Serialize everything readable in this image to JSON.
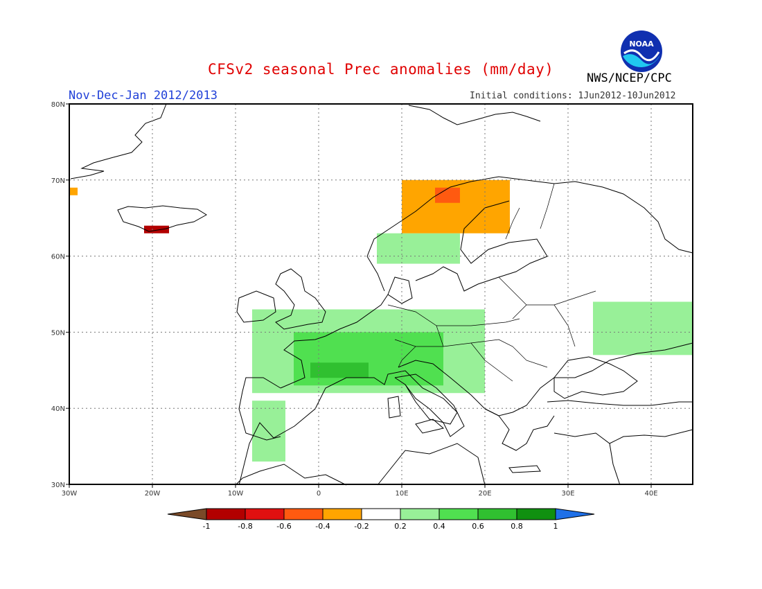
{
  "title": "CFSv2 seasonal Prec anomalies (mm/day)",
  "period": "Nov-Dec-Jan 2012/2013",
  "initial_conditions": "Initial conditions: 1Jun2012-10Jun2012",
  "agency": "NWS/NCEP/CPC",
  "logo_text": "NOAA",
  "map": {
    "lon_range": [
      -30,
      45
    ],
    "lat_range": [
      30,
      80
    ],
    "lat_ticks": [
      "30N",
      "40N",
      "50N",
      "60N",
      "70N",
      "80N"
    ],
    "lon_ticks": [
      "30W",
      "20W",
      "10W",
      "0",
      "10E",
      "20E",
      "30E",
      "40E"
    ],
    "grid": "dotted"
  },
  "colorbar": {
    "labels": [
      "-1",
      "-0.8",
      "-0.6",
      "-0.4",
      "-0.2",
      "0.2",
      "0.4",
      "0.6",
      "0.8",
      "1"
    ],
    "colors": [
      "#7a4a28",
      "#b20000",
      "#e01010",
      "#ff5a10",
      "#ffa500",
      "#ffffff",
      "#98f098",
      "#50e050",
      "#30c030",
      "#109010",
      "#1f70e8"
    ]
  },
  "anomaly_regions": [
    {
      "class": "pos_0.2_0.4",
      "color": "#98f098",
      "lon": [
        -8,
        20
      ],
      "lat": [
        42,
        53
      ],
      "note": "W and C Europe"
    },
    {
      "class": "pos_0.4_0.6",
      "color": "#50e050",
      "lon": [
        -3,
        15
      ],
      "lat": [
        43,
        50
      ],
      "note": "France, Alps"
    },
    {
      "class": "pos_0.6_0.8",
      "color": "#30c030",
      "lon": [
        -1,
        6
      ],
      "lat": [
        44,
        46
      ],
      "note": "S France"
    },
    {
      "class": "pos_0.2_0.4",
      "color": "#98f098",
      "lon": [
        -8,
        -4
      ],
      "lat": [
        33,
        41
      ],
      "note": "Iberia W / Morocco"
    },
    {
      "class": "pos_0.2_0.4",
      "color": "#98f098",
      "lon": [
        7,
        17
      ],
      "lat": [
        59,
        63
      ],
      "note": "Scandinavia S"
    },
    {
      "class": "pos_0.2_0.4",
      "color": "#98f098",
      "lon": [
        33,
        45
      ],
      "lat": [
        47,
        54
      ],
      "note": "W Russia"
    },
    {
      "class": "neg_0.2_0.4",
      "color": "#ffa500",
      "lon": [
        10,
        23
      ],
      "lat": [
        63,
        70
      ],
      "note": "Norway coast"
    },
    {
      "class": "neg_0.4_0.6",
      "color": "#ff5a10",
      "lon": [
        14,
        17
      ],
      "lat": [
        67,
        69
      ],
      "note": "Norway N"
    },
    {
      "class": "neg_0.8_1",
      "color": "#b20000",
      "lon": [
        -21,
        -18
      ],
      "lat": [
        63,
        64
      ],
      "note": "Iceland S"
    },
    {
      "class": "neg_0.2_0.4",
      "color": "#ffa500",
      "lon": [
        -30,
        -29
      ],
      "lat": [
        68,
        69
      ],
      "note": "Greenland E"
    }
  ]
}
